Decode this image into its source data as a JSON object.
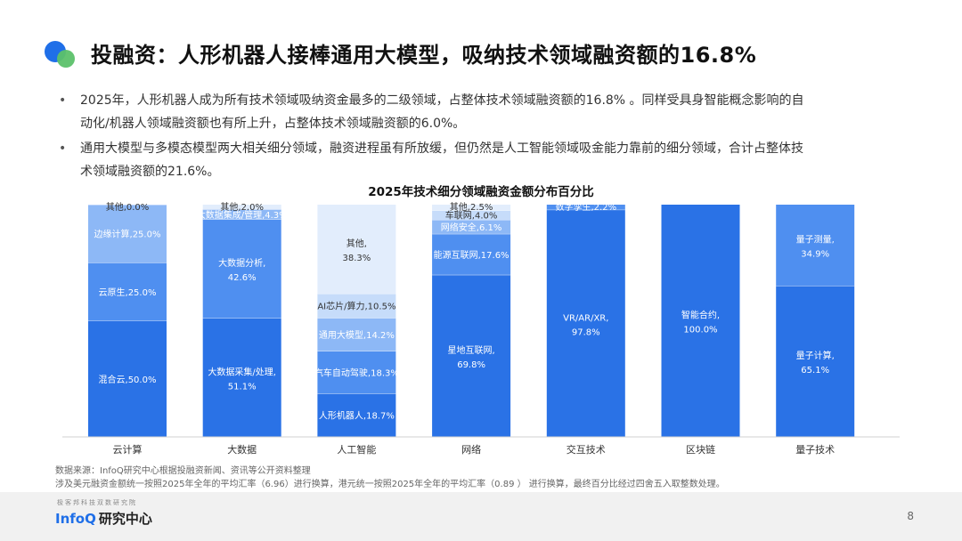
{
  "slide": {
    "title": "投融资：人形机器人接棒通用大模型，吸纳技术领域融资额的16.8%",
    "bullets": [
      {
        "line1": "2025年，人形机器人成为所有技术领域吸纳资金最多的二级领域，占整体技术领域融资额的16.8% 。同样受具身智能概念影响的自",
        "line2": "动化/机器人领域融资额也有所上升，占整体技术领域融资额的6.0%。"
      },
      {
        "line1": "通用大模型与多模态模型两大相关细分领域，融资进程虽有所放缓，但仍然是人工智能领域吸金能力靠前的细分领域，合计占整体技",
        "line2": "术领域融资额的21.6%。"
      }
    ],
    "bullet_symbol": "•",
    "source_line1": "数据来源：InfoQ研究中心根据投融资新闻、资讯等公开资料整理",
    "source_line2": "涉及美元融资金额统一按照2025年全年的平均汇率（6.96）进行换算，港元统一按照2025年全年的平均汇率（0.89 ） 进行换算，最终百分比经过四舍五入取整数处理。",
    "logo_tagline": "极客邦科技双数研究院",
    "logo_brand": "InfoQ",
    "logo_cn": "研究中心",
    "page_number": "8"
  },
  "colors": {
    "accent": "#1f6fe8",
    "green": "#5cc16a",
    "segment_palette": [
      "#2a72e6",
      "#4f8ff0",
      "#8db8f6",
      "#c6dcfa",
      "#e2edfc"
    ]
  },
  "chart_data": {
    "type": "bar",
    "stacked": true,
    "percent": true,
    "title": "2025年技术细分领域融资金额分布百分比",
    "ylim": [
      0,
      100
    ],
    "grid": false,
    "legend": "none",
    "categories": [
      {
        "name": "云计算",
        "segments": [
          {
            "label": "混合云,50.0%",
            "value": 50.0
          },
          {
            "label": "云原生,25.0%",
            "value": 25.0
          },
          {
            "label": "边缘计算,25.0%",
            "value": 25.0
          },
          {
            "label": "其他,0.0%",
            "value": 0.0
          }
        ]
      },
      {
        "name": "大数据",
        "segments": [
          {
            "label": "大数据采集/处理,51.1%",
            "value": 51.1
          },
          {
            "label": "大数据分析,42.6%",
            "value": 42.6
          },
          {
            "label": "大数据集成/管理,4.3%",
            "value": 4.3
          },
          {
            "label": "其他,2.0%",
            "value": 2.0
          }
        ]
      },
      {
        "name": "人工智能",
        "segments": [
          {
            "label": "人形机器人,18.7%",
            "value": 18.7
          },
          {
            "label": "汽车自动驾驶,18.3%",
            "value": 18.3
          },
          {
            "label": "通用大模型,14.2%",
            "value": 14.2
          },
          {
            "label": "AI芯片/算力,10.5%",
            "value": 10.5
          },
          {
            "label": "其他,38.3%",
            "value": 38.3
          }
        ]
      },
      {
        "name": "网络",
        "segments": [
          {
            "label": "星地互联网,69.8%",
            "value": 69.8
          },
          {
            "label": "能源互联网,17.6%",
            "value": 17.6
          },
          {
            "label": "网络安全,6.1%",
            "value": 6.1
          },
          {
            "label": "车联网,4.0%",
            "value": 4.0
          },
          {
            "label": "其他,2.5%",
            "value": 2.5
          }
        ]
      },
      {
        "name": "交互技术",
        "segments": [
          {
            "label": "VR/AR/XR,97.8%",
            "value": 97.8
          },
          {
            "label": "数字孪生,2.2%",
            "value": 2.2
          }
        ]
      },
      {
        "name": "区块链",
        "segments": [
          {
            "label": "智能合约,100.0%",
            "value": 100.0
          }
        ]
      },
      {
        "name": "量子技术",
        "segments": [
          {
            "label": "量子计算,65.1%",
            "value": 65.1
          },
          {
            "label": "量子测量,34.9%",
            "value": 34.9
          }
        ]
      }
    ]
  }
}
